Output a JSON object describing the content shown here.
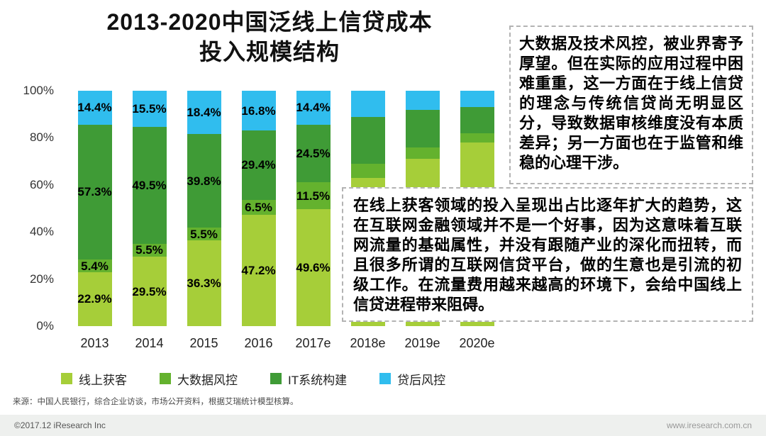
{
  "title": {
    "line1": "2013-2020中国泛线上信贷成本",
    "line2": "投入规模结构"
  },
  "chart_data": {
    "type": "bar",
    "stacked": true,
    "title": "2013-2020中国泛线上信贷成本投入规模结构",
    "categories": [
      "2013",
      "2014",
      "2015",
      "2016",
      "2017e",
      "2018e",
      "2019e",
      "2020e"
    ],
    "series": [
      {
        "name": "线上获客",
        "color": "#a6ce39",
        "values": [
          22.9,
          29.5,
          36.3,
          47.2,
          49.6,
          63.0,
          71.0,
          78.0
        ]
      },
      {
        "name": "大数据风控",
        "color": "#64b22e",
        "values": [
          5.4,
          5.5,
          5.5,
          6.5,
          11.5,
          6.0,
          5.0,
          4.0
        ]
      },
      {
        "name": "IT系统构建",
        "color": "#3f9b36",
        "values": [
          57.3,
          49.5,
          39.8,
          29.4,
          24.5,
          20.0,
          16.0,
          11.0
        ]
      },
      {
        "name": "贷后风控",
        "color": "#30bdee",
        "values": [
          14.4,
          15.5,
          18.4,
          16.8,
          14.4,
          11.0,
          8.0,
          7.0
        ]
      }
    ],
    "labels_shown": [
      true,
      true,
      true,
      true,
      true,
      false,
      false,
      false
    ],
    "ylim": [
      0,
      100
    ],
    "yticks": [
      "100%",
      "80%",
      "60%",
      "40%",
      "20%",
      "0%"
    ],
    "grid": false,
    "legend_position": "bottom"
  },
  "callouts": [
    {
      "text": "大数据及技术风控，被业界寄予厚望。但在实际的应用过程中困难重重，这一方面在于线上信贷的理念与传统信贷尚无明显区分，导致数据审核维度没有本质差异；另一方面也在于监管和维稳的心理干涉。"
    },
    {
      "text": "在线上获客领域的投入呈现出占比逐年扩大的趋势，这在互联网金融领域并不是一个好事，因为这意味着互联网流量的基础属性，并没有跟随产业的深化而扭转，而且很多所谓的互联网信贷平台，做的生意也是引流的初级工作。在流量费用越来越高的环境下，会给中国线上信贷进程带来阻碍。"
    }
  ],
  "source": "来源：中国人民银行，综合企业访谈，市场公开资料，根据艾瑞统计模型核算。",
  "footer": {
    "left": "©2017.12 iResearch Inc",
    "right": "www.iresearch.com.cn"
  }
}
